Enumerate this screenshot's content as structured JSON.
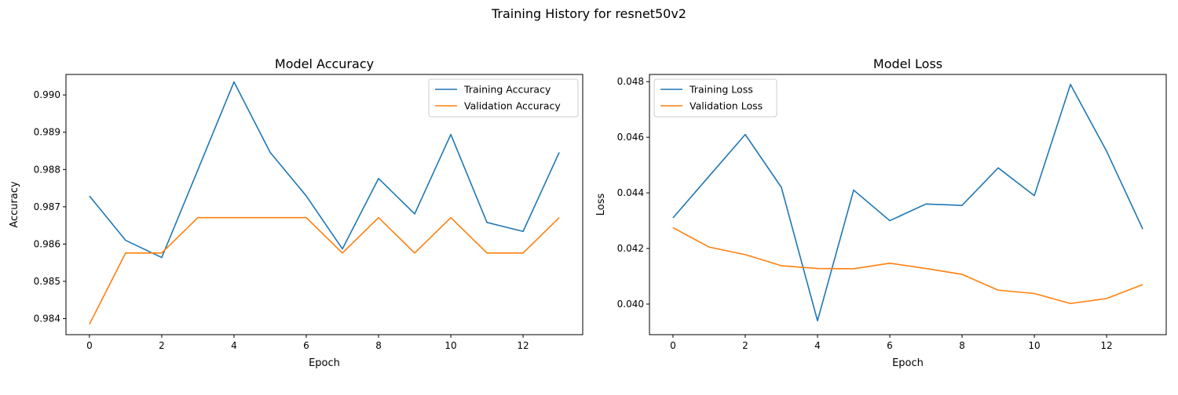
{
  "figure": {
    "suptitle": "Training History for resnet50v2"
  },
  "colors": {
    "series_1": "#1f77b4",
    "series_2": "#ff7f0e",
    "axes": "#000000"
  },
  "chart_data": [
    {
      "type": "line",
      "title": "Model Accuracy",
      "xlabel": "Epoch",
      "ylabel": "Accuracy",
      "x": [
        0,
        1,
        2,
        3,
        4,
        5,
        6,
        7,
        8,
        9,
        10,
        11,
        12,
        13
      ],
      "xlim": [
        -0.65,
        13.65
      ],
      "ylim": [
        0.98357,
        0.99055
      ],
      "xticks": [
        0,
        2,
        4,
        6,
        8,
        10,
        12
      ],
      "xtick_labels": [
        "0",
        "2",
        "4",
        "6",
        "8",
        "10",
        "12"
      ],
      "yticks": [
        0.984,
        0.985,
        0.986,
        0.987,
        0.988,
        0.989,
        0.99
      ],
      "ytick_labels": [
        "0.984",
        "0.985",
        "0.986",
        "0.987",
        "0.988",
        "0.989",
        "0.990"
      ],
      "grid": false,
      "legend": "upper right",
      "series": [
        {
          "name": "Training Accuracy",
          "color": "#1f77b4",
          "values": [
            0.98729,
            0.9861,
            0.98564,
            0.98799,
            0.99035,
            0.98846,
            0.98729,
            0.98587,
            0.98776,
            0.98681,
            0.98894,
            0.98658,
            0.98634,
            0.98846
          ]
        },
        {
          "name": "Validation Accuracy",
          "color": "#ff7f0e",
          "values": [
            0.98385,
            0.98576,
            0.98576,
            0.98671,
            0.98671,
            0.98671,
            0.98671,
            0.98576,
            0.98671,
            0.98576,
            0.98671,
            0.98576,
            0.98576,
            0.98671
          ]
        }
      ]
    },
    {
      "type": "line",
      "title": "Model Loss",
      "xlabel": "Epoch",
      "ylabel": "Loss",
      "x": [
        0,
        1,
        2,
        3,
        4,
        5,
        6,
        7,
        8,
        9,
        10,
        11,
        12,
        13
      ],
      "xlim": [
        -0.65,
        13.65
      ],
      "ylim": [
        0.0389,
        0.04826
      ],
      "xticks": [
        0,
        2,
        4,
        6,
        8,
        10,
        12
      ],
      "xtick_labels": [
        "0",
        "2",
        "4",
        "6",
        "8",
        "10",
        "12"
      ],
      "yticks": [
        0.04,
        0.042,
        0.044,
        0.046,
        0.048
      ],
      "ytick_labels": [
        "0.040",
        "0.042",
        "0.044",
        "0.046",
        "0.048"
      ],
      "grid": false,
      "legend": "upper left",
      "series": [
        {
          "name": "Training Loss",
          "color": "#1f77b4",
          "values": [
            0.0431,
            0.0446,
            0.0461,
            0.0442,
            0.0394,
            0.0441,
            0.043,
            0.0436,
            0.04355,
            0.0449,
            0.0439,
            0.0479,
            0.0455,
            0.0427
          ]
        },
        {
          "name": "Validation Loss",
          "color": "#ff7f0e",
          "values": [
            0.04275,
            0.04205,
            0.04178,
            0.04138,
            0.04128,
            0.04127,
            0.04147,
            0.04128,
            0.04107,
            0.0405,
            0.04038,
            0.04002,
            0.0402,
            0.0407
          ]
        }
      ]
    }
  ]
}
